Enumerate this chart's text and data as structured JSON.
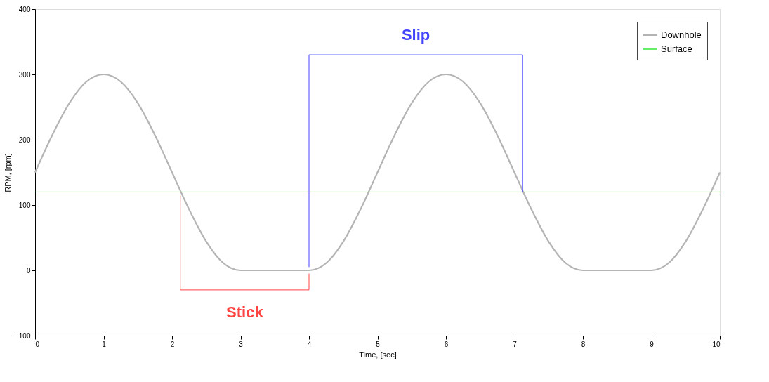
{
  "chart_data": {
    "type": "line",
    "xlabel": "Time, [sec]",
    "ylabel": "RPM, [rpm]",
    "xlim": [
      0,
      10
    ],
    "ylim": [
      -100,
      400
    ],
    "xticks": [
      0,
      1,
      2,
      3,
      4,
      5,
      6,
      7,
      8,
      9,
      10
    ],
    "yticks": [
      -100,
      0,
      100,
      200,
      300,
      400
    ],
    "grid": false,
    "legend": "top right",
    "line_style": "solid",
    "series": [
      {
        "name": "Downhole",
        "color": "#b4b4b4",
        "x": [
          0,
          0.25,
          0.5,
          0.75,
          1,
          1.25,
          1.5,
          1.75,
          2,
          2.25,
          2.5,
          2.75,
          3,
          3.5,
          4,
          4.25,
          4.5,
          4.75,
          5,
          5.25,
          5.5,
          5.75,
          6,
          6.25,
          6.5,
          6.75,
          7,
          7.25,
          7.5,
          7.75,
          8,
          8.5,
          9,
          9.25,
          9.5,
          9.75,
          10
        ],
        "values": [
          150,
          207,
          256,
          289,
          300,
          289,
          256,
          207,
          150,
          93,
          44,
          11,
          0,
          0,
          0,
          11,
          44,
          93,
          150,
          207,
          256,
          289,
          300,
          289,
          256,
          207,
          150,
          93,
          44,
          11,
          0,
          0,
          0,
          11,
          44,
          93,
          150
        ]
      },
      {
        "name": "Surface",
        "color": "#66ee66",
        "x": [
          0,
          10
        ],
        "values": [
          120,
          120
        ]
      },
      {
        "color": "#ff4444",
        "x": [
          2.12,
          2.12,
          4,
          4
        ],
        "values": [
          115,
          -30,
          -30,
          -5
        ]
      },
      {
        "color": "#4444ff",
        "x": [
          4,
          4,
          7.12,
          7.12
        ],
        "values": [
          5,
          330,
          330,
          120
        ]
      }
    ],
    "annotations": [
      "Stick",
      "Slip"
    ]
  }
}
